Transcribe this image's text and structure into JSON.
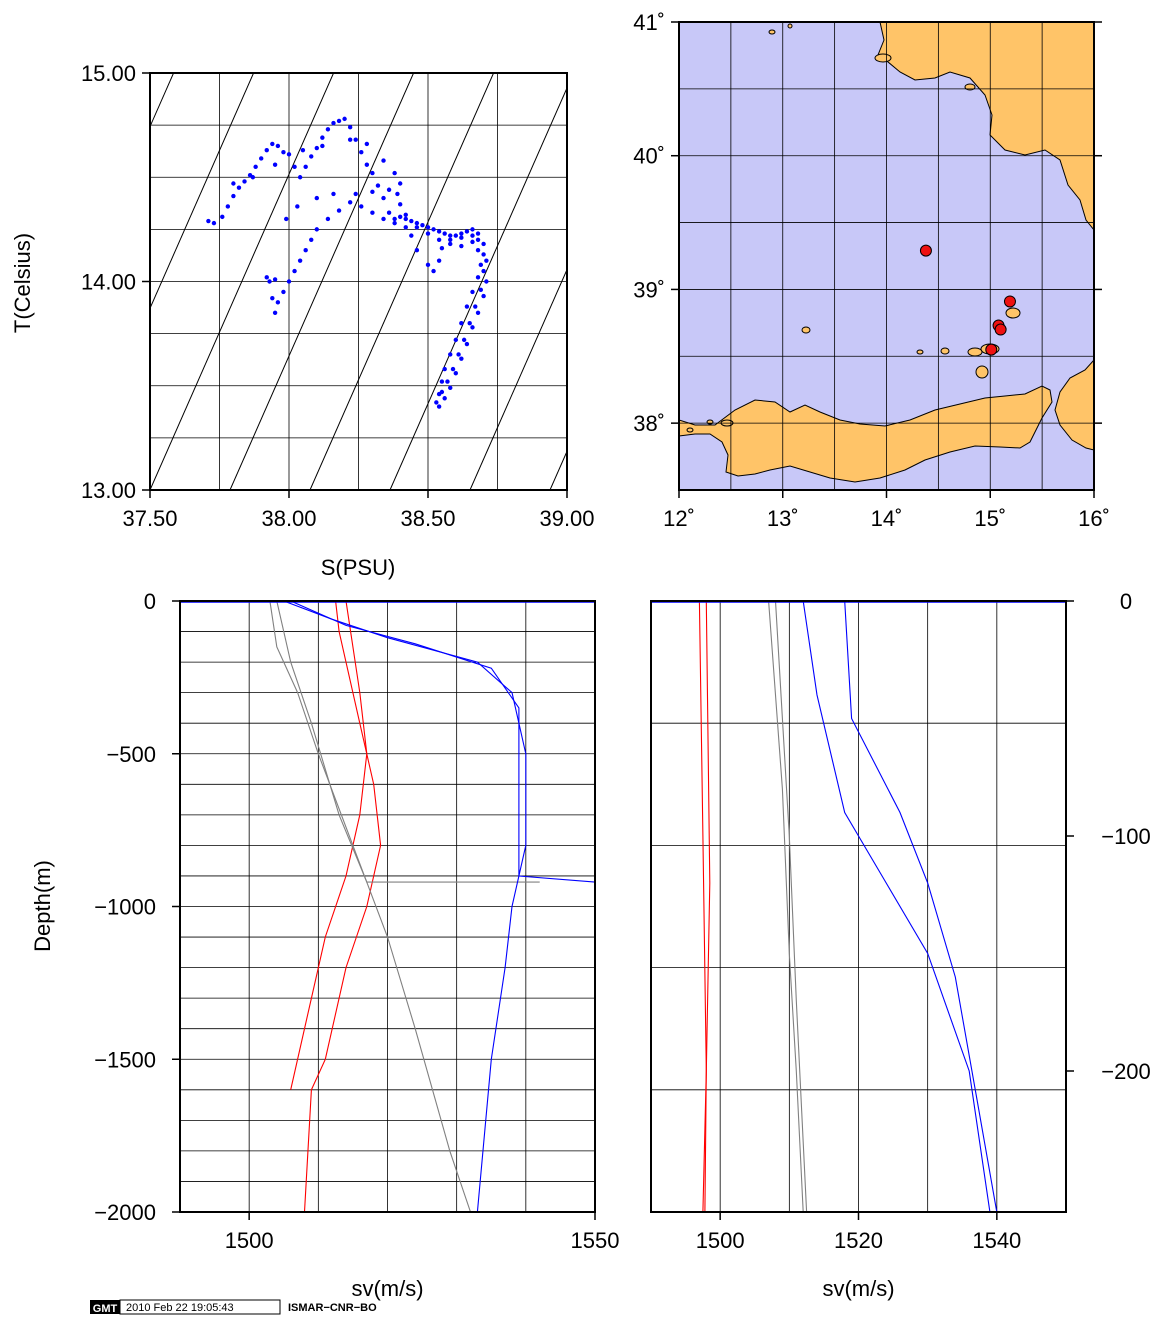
{
  "chart_data": [
    {
      "id": "ts",
      "type": "scatter",
      "xlabel": "S(PSU)",
      "ylabel": "T(Celsius)",
      "xlim": [
        37.5,
        39.0
      ],
      "ylim": [
        13.0,
        15.0
      ],
      "x_ticks": [
        "37.50",
        "38.00",
        "38.50",
        "39.00"
      ],
      "y_ticks": [
        "13.00",
        "14.00",
        "15.00"
      ],
      "grid": true,
      "point_color": "#0000ff",
      "series": [
        {
          "points": [
            [
              37.71,
              14.29
            ],
            [
              37.73,
              14.28
            ],
            [
              37.76,
              14.31
            ],
            [
              37.78,
              14.36
            ],
            [
              37.8,
              14.41
            ],
            [
              37.82,
              14.45
            ],
            [
              37.84,
              14.48
            ],
            [
              37.86,
              14.51
            ],
            [
              37.88,
              14.55
            ],
            [
              37.9,
              14.59
            ],
            [
              37.92,
              14.63
            ],
            [
              37.94,
              14.66
            ],
            [
              37.96,
              14.65
            ],
            [
              37.98,
              14.62
            ],
            [
              38.0,
              14.61
            ],
            [
              38.02,
              14.55
            ],
            [
              38.04,
              14.5
            ],
            [
              38.06,
              14.55
            ],
            [
              38.08,
              14.6
            ],
            [
              38.1,
              14.64
            ],
            [
              38.12,
              14.69
            ],
            [
              38.14,
              14.73
            ],
            [
              38.16,
              14.76
            ],
            [
              38.18,
              14.77
            ],
            [
              38.2,
              14.78
            ],
            [
              38.22,
              14.74
            ],
            [
              38.24,
              14.68
            ],
            [
              38.26,
              14.62
            ],
            [
              38.28,
              14.56
            ],
            [
              38.3,
              14.52
            ],
            [
              38.32,
              14.46
            ],
            [
              38.34,
              14.4
            ],
            [
              38.36,
              14.33
            ],
            [
              38.38,
              14.3
            ],
            [
              38.4,
              14.31
            ],
            [
              38.42,
              14.3
            ],
            [
              38.44,
              14.29
            ],
            [
              38.46,
              14.28
            ],
            [
              38.48,
              14.27
            ],
            [
              38.5,
              14.26
            ],
            [
              38.52,
              14.25
            ],
            [
              38.54,
              14.24
            ],
            [
              38.56,
              14.23
            ],
            [
              38.58,
              14.22
            ],
            [
              38.6,
              14.22
            ],
            [
              38.62,
              14.23
            ],
            [
              38.64,
              14.24
            ],
            [
              38.66,
              14.25
            ],
            [
              38.68,
              14.23
            ],
            [
              38.7,
              14.18
            ],
            [
              38.71,
              14.1
            ],
            [
              38.71,
              14.0
            ],
            [
              38.7,
              13.93
            ],
            [
              38.68,
              13.85
            ],
            [
              38.66,
              13.78
            ],
            [
              38.64,
              13.7
            ],
            [
              38.62,
              13.63
            ],
            [
              38.6,
              13.56
            ],
            [
              38.58,
              13.49
            ],
            [
              38.56,
              13.44
            ],
            [
              38.54,
              13.4
            ],
            [
              38.53,
              13.42
            ],
            [
              38.55,
              13.47
            ],
            [
              38.57,
              13.52
            ],
            [
              38.59,
              13.58
            ],
            [
              38.61,
              13.65
            ],
            [
              38.63,
              13.72
            ],
            [
              38.65,
              13.8
            ],
            [
              38.67,
              13.88
            ],
            [
              38.69,
              13.96
            ],
            [
              38.7,
              14.05
            ],
            [
              38.7,
              14.13
            ],
            [
              38.68,
              14.2
            ],
            [
              38.66,
              14.22
            ],
            [
              38.62,
              14.21
            ],
            [
              38.58,
              14.2
            ],
            [
              38.55,
              14.16
            ],
            [
              38.54,
              14.1
            ],
            [
              38.52,
              14.05
            ],
            [
              38.5,
              14.08
            ],
            [
              38.46,
              14.15
            ],
            [
              38.44,
              14.22
            ],
            [
              38.42,
              14.26
            ],
            [
              38.38,
              14.28
            ],
            [
              38.34,
              14.3
            ],
            [
              38.3,
              14.33
            ],
            [
              38.26,
              14.36
            ],
            [
              38.22,
              14.38
            ],
            [
              38.18,
              14.34
            ],
            [
              38.14,
              14.3
            ],
            [
              38.1,
              14.25
            ],
            [
              38.08,
              14.2
            ],
            [
              38.06,
              14.15
            ],
            [
              38.04,
              14.1
            ],
            [
              38.02,
              14.05
            ],
            [
              38.0,
              14.0
            ],
            [
              37.98,
              13.95
            ],
            [
              37.96,
              13.9
            ],
            [
              37.95,
              13.85
            ],
            [
              37.94,
              13.92
            ],
            [
              37.93,
              14.0
            ],
            [
              37.92,
              14.02
            ],
            [
              37.95,
              14.01
            ],
            [
              37.99,
              14.3
            ],
            [
              38.03,
              14.36
            ],
            [
              38.1,
              14.4
            ],
            [
              38.16,
              14.42
            ],
            [
              38.24,
              14.42
            ],
            [
              38.3,
              14.43
            ],
            [
              38.36,
              14.44
            ],
            [
              38.39,
              14.42
            ],
            [
              38.4,
              14.37
            ],
            [
              38.42,
              14.32
            ],
            [
              38.46,
              14.26
            ],
            [
              38.5,
              14.23
            ],
            [
              38.54,
              14.2
            ],
            [
              38.58,
              14.18
            ],
            [
              38.62,
              14.17
            ],
            [
              38.66,
              14.19
            ],
            [
              38.68,
              14.15
            ],
            [
              38.69,
              14.08
            ],
            [
              38.68,
              14.02
            ],
            [
              38.66,
              13.95
            ],
            [
              38.64,
              13.88
            ],
            [
              38.62,
              13.8
            ],
            [
              38.6,
              13.72
            ],
            [
              38.58,
              13.65
            ],
            [
              38.56,
              13.58
            ],
            [
              38.55,
              13.52
            ],
            [
              38.54,
              13.46
            ],
            [
              37.8,
              14.47
            ],
            [
              37.87,
              14.5
            ],
            [
              37.95,
              14.56
            ],
            [
              38.05,
              14.63
            ],
            [
              38.12,
              14.65
            ],
            [
              38.22,
              14.68
            ],
            [
              38.28,
              14.66
            ],
            [
              38.34,
              14.58
            ],
            [
              38.38,
              14.52
            ],
            [
              38.4,
              14.47
            ]
          ]
        }
      ]
    },
    {
      "id": "map",
      "type": "scatter",
      "xlim": [
        12,
        16
      ],
      "ylim": [
        37.5,
        41
      ],
      "x_ticks": [
        "12˚",
        "13˚",
        "14˚",
        "15˚",
        "16˚"
      ],
      "y_ticks": [
        "38˚",
        "39˚",
        "40˚",
        "41˚"
      ],
      "grid": true,
      "sea_color": "#c8c8f8",
      "land_color": "#ffc468",
      "marker_color": "#ee1111",
      "stations": [
        [
          14.38,
          39.29
        ],
        [
          15.19,
          38.91
        ],
        [
          15.08,
          38.73
        ],
        [
          15.1,
          38.7
        ],
        [
          15.01,
          38.55
        ]
      ]
    },
    {
      "id": "sv_deep",
      "type": "line",
      "xlabel": "sv(m/s)",
      "ylabel": "Depth(m)",
      "xlim": [
        1490,
        1550
      ],
      "ylim": [
        -2000,
        0
      ],
      "x_ticks": [
        "1500",
        "1550"
      ],
      "y_ticks": [
        "0",
        "−500",
        "−1000",
        "−1500",
        "−2000"
      ],
      "grid": true,
      "series": [
        {
          "color": "#ff0000",
          "points": [
            [
              1512.5,
              0
            ],
            [
              1513,
              -100
            ],
            [
              1514,
              -200
            ],
            [
              1516,
              -400
            ],
            [
              1518,
              -600
            ],
            [
              1519,
              -800
            ],
            [
              1517,
              -1000
            ],
            [
              1514,
              -1200
            ],
            [
              1511,
              -1500
            ],
            [
              1509,
              -1600
            ],
            [
              1508,
              -2000
            ]
          ]
        },
        {
          "color": "#ff0000",
          "points": [
            [
              1514,
              0
            ],
            [
              1515,
              -150
            ],
            [
              1516,
              -300
            ],
            [
              1517,
              -500
            ],
            [
              1516,
              -700
            ],
            [
              1514,
              -900
            ],
            [
              1511,
              -1100
            ],
            [
              1509,
              -1300
            ],
            [
              1506,
              -1600
            ]
          ]
        },
        {
          "color": "#808080",
          "points": [
            [
              1503,
              0
            ],
            [
              1504,
              -150
            ],
            [
              1507,
              -300
            ],
            [
              1510,
              -500
            ],
            [
              1515,
              -800
            ],
            [
              1520,
              -1100
            ],
            [
              1524,
              -1400
            ],
            [
              1529,
              -1800
            ],
            [
              1532,
              -2000
            ]
          ]
        },
        {
          "color": "#808080",
          "points": [
            [
              1504,
              0
            ],
            [
              1506,
              -200
            ],
            [
              1509,
              -400
            ],
            [
              1513,
              -700
            ],
            [
              1517,
              -920
            ],
            [
              1542,
              -920
            ]
          ]
        },
        {
          "color": "#0000ff",
          "points": [
            [
              1505,
              0
            ],
            [
              1512,
              -60
            ],
            [
              1520,
              -120
            ],
            [
              1533,
              -200
            ],
            [
              1538,
              -300
            ],
            [
              1540,
              -500
            ],
            [
              1540,
              -800
            ],
            [
              1538,
              -1000
            ],
            [
              1537,
              -1200
            ],
            [
              1535,
              -1500
            ],
            [
              1533,
              -2000
            ]
          ]
        },
        {
          "color": "#0000ff",
          "points": [
            [
              1506,
              0
            ],
            [
              1514,
              -80
            ],
            [
              1524,
              -140
            ],
            [
              1535,
              -220
            ],
            [
              1539,
              -350
            ],
            [
              1539,
              -600
            ],
            [
              1539,
              -900
            ],
            [
              1550,
              -920
            ]
          ]
        }
      ]
    },
    {
      "id": "sv_shallow",
      "type": "line",
      "xlabel": "sv(m/s)",
      "xlim": [
        1490,
        1550
      ],
      "ylim": [
        -260,
        0
      ],
      "x_ticks": [
        "1500",
        "1520",
        "1540"
      ],
      "y_ticks": [
        "0",
        "−100",
        "−200"
      ],
      "grid": true,
      "series": [
        {
          "color": "#ff0000",
          "points": [
            [
              1497,
              0
            ],
            [
              1497.5,
              -100
            ],
            [
              1498,
              -200
            ],
            [
              1497.5,
              -260
            ]
          ]
        },
        {
          "color": "#ff0000",
          "points": [
            [
              1498,
              0
            ],
            [
              1498.5,
              -120
            ],
            [
              1498,
              -200
            ],
            [
              1497.8,
              -260
            ]
          ]
        },
        {
          "color": "#808080",
          "points": [
            [
              1507,
              0
            ],
            [
              1509,
              -80
            ],
            [
              1510,
              -150
            ],
            [
              1511,
              -200
            ],
            [
              1512,
              -260
            ]
          ]
        },
        {
          "color": "#808080",
          "points": [
            [
              1508,
              0
            ],
            [
              1510,
              -100
            ],
            [
              1511,
              -170
            ],
            [
              1512.5,
              -260
            ]
          ]
        },
        {
          "color": "#0000ff",
          "points": [
            [
              1512,
              0
            ],
            [
              1514,
              -40
            ],
            [
              1518,
              -90
            ],
            [
              1524,
              -120
            ],
            [
              1530,
              -150
            ],
            [
              1536,
              -200
            ],
            [
              1539,
              -260
            ]
          ]
        },
        {
          "color": "#0000ff",
          "points": [
            [
              1518,
              0
            ],
            [
              1519,
              -50
            ],
            [
              1526,
              -90
            ],
            [
              1530,
              -120
            ],
            [
              1534,
              -160
            ],
            [
              1537,
              -210
            ],
            [
              1540,
              -260
            ]
          ]
        }
      ]
    }
  ],
  "footer": {
    "logo": "GMT",
    "timestamp": "2010 Feb 22 19:05:43",
    "institution": "ISMAR−CNR−BO"
  }
}
